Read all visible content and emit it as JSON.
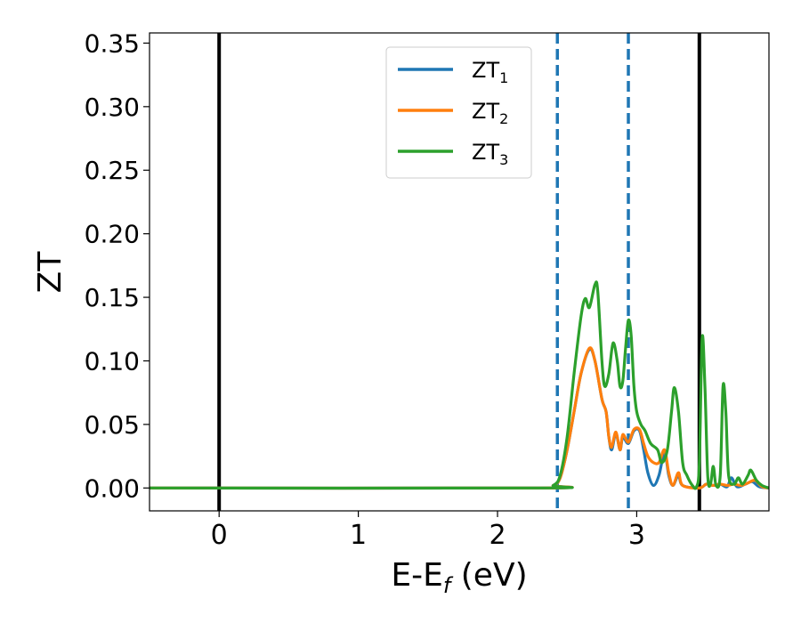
{
  "chart_data": {
    "type": "line",
    "xlabel": {
      "main": "E-E",
      "sub": "f",
      "tail": " (eV)"
    },
    "ylabel": "ZT",
    "xlim": [
      -0.5,
      3.95
    ],
    "ylim": [
      -0.018,
      0.358
    ],
    "x_ticks": [
      0,
      1,
      2,
      3
    ],
    "x_tick_labels": [
      "0",
      "1",
      "2",
      "3"
    ],
    "y_ticks": [
      0.0,
      0.05,
      0.1,
      0.15,
      0.2,
      0.25,
      0.3,
      0.35
    ],
    "y_tick_labels": [
      "0.00",
      "0.05",
      "0.10",
      "0.15",
      "0.20",
      "0.25",
      "0.30",
      "0.35"
    ],
    "grid": false,
    "legend_position": "top-center",
    "vertical_lines": [
      {
        "x": 0.0,
        "style": "solid",
        "color": "#000000"
      },
      {
        "x": 3.45,
        "style": "solid",
        "color": "#000000"
      },
      {
        "x": 2.43,
        "style": "dashed",
        "color": "#1f77b4"
      },
      {
        "x": 2.94,
        "style": "dashed",
        "color": "#1f77b4"
      }
    ],
    "series": [
      {
        "name": "ZT",
        "sub": "1",
        "color": "#1f77b4",
        "points": [
          [
            -0.5,
            0
          ],
          [
            2.3,
            0
          ],
          [
            2.4,
            0.002
          ],
          [
            2.45,
            0.008
          ],
          [
            2.5,
            0.03
          ],
          [
            2.55,
            0.06
          ],
          [
            2.6,
            0.09
          ],
          [
            2.66,
            0.109
          ],
          [
            2.7,
            0.1
          ],
          [
            2.75,
            0.07
          ],
          [
            2.78,
            0.06
          ],
          [
            2.8,
            0.04
          ],
          [
            2.82,
            0.03
          ],
          [
            2.85,
            0.043
          ],
          [
            2.88,
            0.03
          ],
          [
            2.9,
            0.04
          ],
          [
            2.94,
            0.035
          ],
          [
            2.98,
            0.045
          ],
          [
            3.02,
            0.045
          ],
          [
            3.05,
            0.03
          ],
          [
            3.08,
            0.012
          ],
          [
            3.12,
            0.002
          ],
          [
            3.16,
            0.01
          ],
          [
            3.2,
            0.028
          ],
          [
            3.23,
            0.01
          ],
          [
            3.26,
            0.002
          ],
          [
            3.3,
            0.01
          ],
          [
            3.33,
            0.002
          ],
          [
            3.45,
            0
          ],
          [
            3.5,
            0.003
          ],
          [
            3.55,
            0.002
          ],
          [
            3.6,
            0.003
          ],
          [
            3.65,
            0.001
          ],
          [
            3.68,
            0.008
          ],
          [
            3.72,
            0.001
          ],
          [
            3.78,
            0.003
          ],
          [
            3.83,
            0.005
          ],
          [
            3.88,
            0.001
          ],
          [
            3.95,
            0
          ]
        ]
      },
      {
        "name": "ZT",
        "sub": "2",
        "color": "#ff7f0e",
        "points": [
          [
            -0.5,
            0
          ],
          [
            2.3,
            0
          ],
          [
            2.4,
            0.002
          ],
          [
            2.45,
            0.008
          ],
          [
            2.5,
            0.03
          ],
          [
            2.55,
            0.06
          ],
          [
            2.6,
            0.09
          ],
          [
            2.66,
            0.11
          ],
          [
            2.7,
            0.1
          ],
          [
            2.75,
            0.07
          ],
          [
            2.78,
            0.06
          ],
          [
            2.8,
            0.04
          ],
          [
            2.82,
            0.032
          ],
          [
            2.85,
            0.044
          ],
          [
            2.88,
            0.03
          ],
          [
            2.9,
            0.042
          ],
          [
            2.94,
            0.036
          ],
          [
            2.98,
            0.046
          ],
          [
            3.02,
            0.046
          ],
          [
            3.05,
            0.035
          ],
          [
            3.08,
            0.025
          ],
          [
            3.12,
            0.02
          ],
          [
            3.16,
            0.02
          ],
          [
            3.2,
            0.03
          ],
          [
            3.23,
            0.012
          ],
          [
            3.26,
            0.002
          ],
          [
            3.3,
            0.012
          ],
          [
            3.33,
            0.002
          ],
          [
            3.45,
            0
          ],
          [
            3.5,
            0.003
          ],
          [
            3.55,
            0.002
          ],
          [
            3.6,
            0.003
          ],
          [
            3.65,
            0.002
          ],
          [
            3.7,
            0.003
          ],
          [
            3.75,
            0.002
          ],
          [
            3.8,
            0.004
          ],
          [
            3.85,
            0.006
          ],
          [
            3.9,
            0.001
          ],
          [
            3.95,
            0
          ]
        ]
      },
      {
        "name": "ZT",
        "sub": "3",
        "color": "#2ca02c",
        "points": [
          [
            -0.5,
            0
          ],
          [
            2.3,
            0
          ],
          [
            2.4,
            0.002
          ],
          [
            2.45,
            0.01
          ],
          [
            2.5,
            0.04
          ],
          [
            2.55,
            0.09
          ],
          [
            2.6,
            0.135
          ],
          [
            2.63,
            0.149
          ],
          [
            2.66,
            0.142
          ],
          [
            2.7,
            0.16
          ],
          [
            2.72,
            0.155
          ],
          [
            2.75,
            0.1
          ],
          [
            2.77,
            0.08
          ],
          [
            2.8,
            0.09
          ],
          [
            2.83,
            0.114
          ],
          [
            2.86,
            0.1
          ],
          [
            2.88,
            0.08
          ],
          [
            2.9,
            0.084
          ],
          [
            2.92,
            0.11
          ],
          [
            2.94,
            0.132
          ],
          [
            2.96,
            0.12
          ],
          [
            2.98,
            0.08
          ],
          [
            3.0,
            0.06
          ],
          [
            3.03,
            0.05
          ],
          [
            3.06,
            0.045
          ],
          [
            3.1,
            0.035
          ],
          [
            3.15,
            0.03
          ],
          [
            3.18,
            0.02
          ],
          [
            3.22,
            0.03
          ],
          [
            3.25,
            0.06
          ],
          [
            3.27,
            0.079
          ],
          [
            3.3,
            0.06
          ],
          [
            3.33,
            0.02
          ],
          [
            3.36,
            0.01
          ],
          [
            3.4,
            0.002
          ],
          [
            3.43,
            0.001
          ],
          [
            3.45,
            0.02
          ],
          [
            3.47,
            0.118
          ],
          [
            3.49,
            0.08
          ],
          [
            3.51,
            0.01
          ],
          [
            3.53,
            0.003
          ],
          [
            3.55,
            0.017
          ],
          [
            3.57,
            0.002
          ],
          [
            3.6,
            0.01
          ],
          [
            3.62,
            0.08
          ],
          [
            3.64,
            0.06
          ],
          [
            3.66,
            0.01
          ],
          [
            3.7,
            0.003
          ],
          [
            3.73,
            0.008
          ],
          [
            3.76,
            0.003
          ],
          [
            3.8,
            0.01
          ],
          [
            3.82,
            0.014
          ],
          [
            3.86,
            0.006
          ],
          [
            3.9,
            0.002
          ],
          [
            3.95,
            0
          ]
        ]
      }
    ]
  }
}
